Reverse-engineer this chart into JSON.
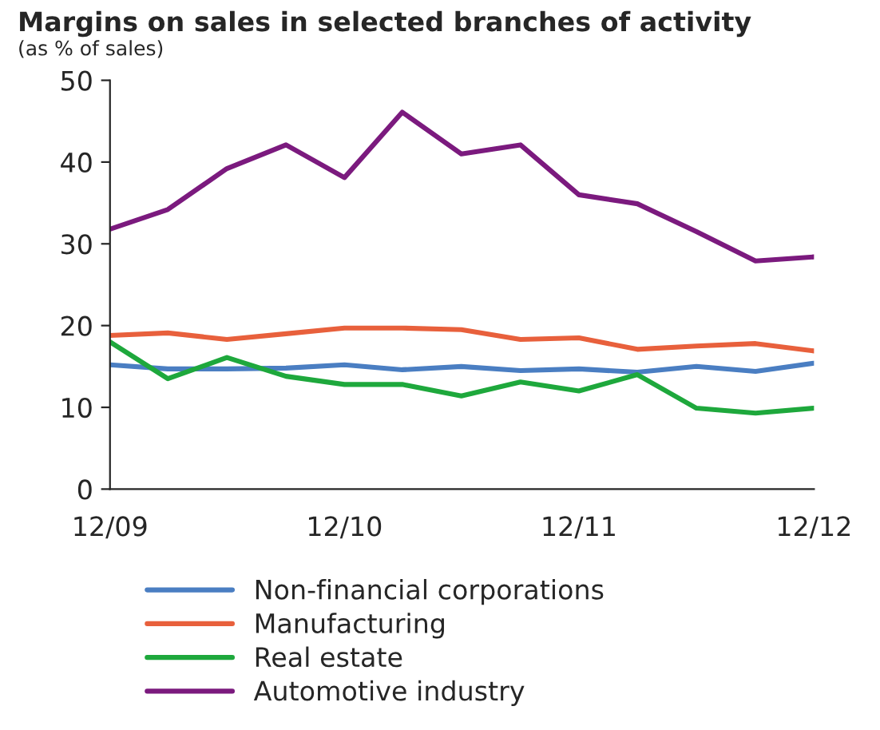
{
  "chart_data": {
    "type": "line",
    "title": "Margins on sales in selected branches of activity",
    "subtitle": "(as % of sales)",
    "x": [
      "2009-12",
      "2010-03",
      "2010-06",
      "2010-09",
      "2010-12",
      "2011-03",
      "2011-06",
      "2011-09",
      "2011-12",
      "2012-03",
      "2012-06",
      "2012-09",
      "2012-12"
    ],
    "xlim": [
      "2009-12",
      "2012-12"
    ],
    "xticks": [
      {
        "value": "2009-12",
        "label": "12/09"
      },
      {
        "value": "2010-12",
        "label": "12/10"
      },
      {
        "value": "2011-12",
        "label": "12/11"
      },
      {
        "value": "2012-12",
        "label": "12/12"
      }
    ],
    "ylim": [
      0,
      50
    ],
    "yticks": [
      0,
      10,
      20,
      30,
      40,
      50
    ],
    "grid": false,
    "legend": "bottom",
    "marker": "none",
    "line_style": "solid",
    "series": [
      {
        "name": "Non-financial corporations",
        "color": "#4a7ec2",
        "values": [
          15.2,
          14.7,
          14.7,
          14.8,
          15.2,
          14.6,
          15.0,
          14.5,
          14.7,
          14.3,
          15.0,
          14.4,
          15.4
        ]
      },
      {
        "name": "Manufacturing",
        "color": "#e8603c",
        "values": [
          18.8,
          19.1,
          18.3,
          19.0,
          19.7,
          19.7,
          19.5,
          18.3,
          18.5,
          17.1,
          17.5,
          17.8,
          16.9
        ]
      },
      {
        "name": "Real estate",
        "color": "#1ea83c",
        "values": [
          18.0,
          13.5,
          16.1,
          13.8,
          12.8,
          12.8,
          11.4,
          13.1,
          12.0,
          14.0,
          9.9,
          9.3,
          9.9
        ]
      },
      {
        "name": "Automotive industry",
        "color": "#7b1a7e",
        "values": [
          31.8,
          34.2,
          39.2,
          42.1,
          38.1,
          46.1,
          41.0,
          42.1,
          36.0,
          34.9,
          31.5,
          27.9,
          28.4
        ]
      }
    ]
  }
}
